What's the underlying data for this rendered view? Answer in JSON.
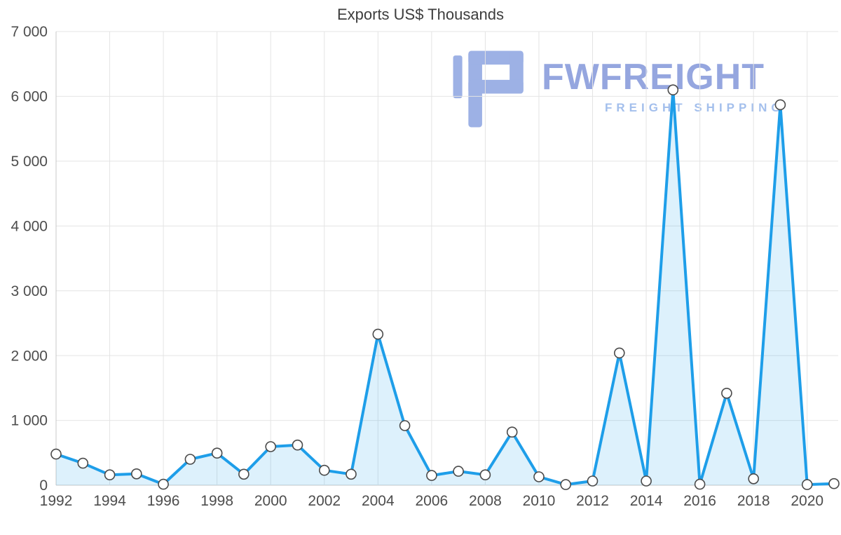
{
  "watermark": {
    "brand": "FWFREIGHT",
    "subtitle": "FREIGHT SHIPPING",
    "brand_color": "#7e93d9",
    "subtitle_color": "#9fbcec"
  },
  "chart_data": {
    "type": "line",
    "title": "Exports US$ Thousands",
    "x": [
      1992,
      1993,
      1994,
      1995,
      1996,
      1997,
      1998,
      1999,
      2000,
      2001,
      2002,
      2003,
      2004,
      2005,
      2006,
      2007,
      2008,
      2009,
      2010,
      2011,
      2012,
      2013,
      2014,
      2015,
      2016,
      2017,
      2018,
      2019,
      2020,
      2021
    ],
    "values": [
      480,
      340,
      160,
      175,
      15,
      400,
      495,
      170,
      595,
      620,
      230,
      170,
      2330,
      920,
      150,
      215,
      160,
      820,
      130,
      10,
      65,
      2040,
      65,
      6100,
      15,
      1420,
      100,
      5870,
      10,
      25
    ],
    "ylim": [
      0,
      7000
    ],
    "ytick_values": [
      0,
      1000,
      2000,
      3000,
      4000,
      5000,
      6000,
      7000
    ],
    "ytick_labels": [
      "0",
      "1 000",
      "2 000",
      "3 000",
      "4 000",
      "5 000",
      "6 000",
      "7 000"
    ],
    "xtick_values": [
      1992,
      1994,
      1996,
      1998,
      2000,
      2002,
      2004,
      2006,
      2008,
      2010,
      2012,
      2014,
      2016,
      2018,
      2020
    ],
    "xtick_labels": [
      "1992",
      "1994",
      "1996",
      "1998",
      "2000",
      "2002",
      "2004",
      "2006",
      "2008",
      "2010",
      "2012",
      "2014",
      "2016",
      "2018",
      "2020"
    ],
    "grid": true,
    "legend": "none",
    "style": {
      "line_color": "#1e9ee9",
      "area_fill": "rgba(30,158,233,0.15)",
      "marker_fill": "#ffffff",
      "marker_stroke": "#4a4a4a",
      "grid_color": "#e4e4e4",
      "axis_line_color": "#c8c8c8",
      "tick_label_color": "#4d4d4d",
      "title_color": "#3d3d3d"
    }
  }
}
